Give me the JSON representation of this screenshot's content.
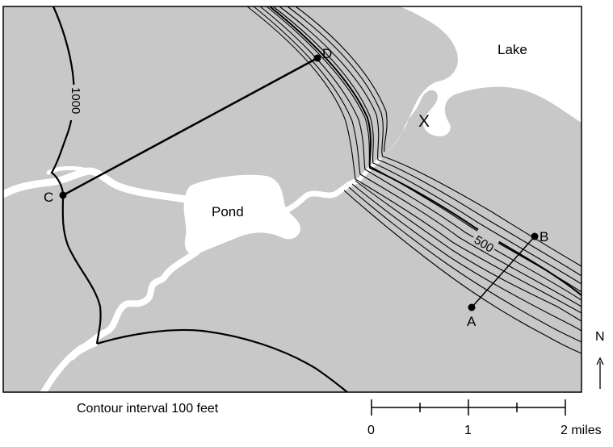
{
  "map": {
    "labels": {
      "lake": "Lake",
      "pond": "Pond",
      "point_x": "X",
      "contour_1000": "1000",
      "contour_500": "500"
    },
    "points": [
      {
        "id": "A",
        "label": "A"
      },
      {
        "id": "B",
        "label": "B"
      },
      {
        "id": "C",
        "label": "C"
      },
      {
        "id": "D",
        "label": "D"
      }
    ],
    "profile_lines": [
      "C-D",
      "A-B"
    ],
    "contour_interval_label": "Contour interval 100 feet",
    "scale_bar": {
      "ticks": [
        "0",
        "1",
        "2 miles"
      ]
    },
    "north_label": "N",
    "colors": {
      "land": "#c8c8c8",
      "water": "#ffffff",
      "lines": "#000000"
    }
  }
}
